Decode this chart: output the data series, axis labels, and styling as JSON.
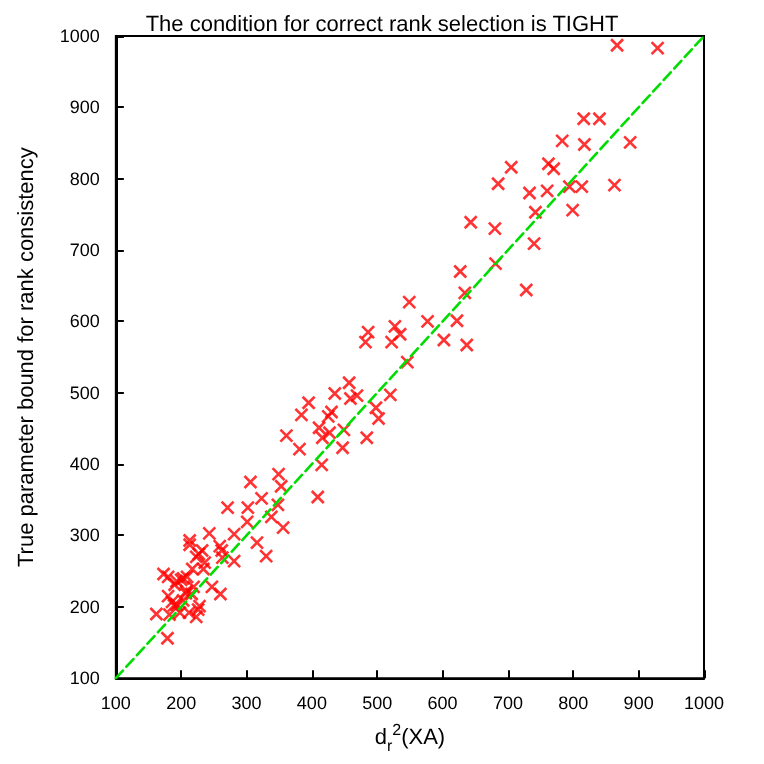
{
  "chart_data": {
    "type": "scatter",
    "title": "The condition for correct rank selection is TIGHT",
    "xlabel": "d$_{r}$$^{2}$(XA)",
    "ylabel": "True parameter bound for rank consistency",
    "xlim": [
      100,
      1000
    ],
    "ylim": [
      100,
      1000
    ],
    "xticks": [
      100,
      200,
      300,
      400,
      500,
      600,
      700,
      800,
      900,
      1000
    ],
    "yticks": [
      100,
      200,
      300,
      400,
      500,
      600,
      700,
      800,
      900,
      1000
    ],
    "grid": false,
    "marker": "cross",
    "series": [
      {
        "type": "scatter",
        "color": "#ff0000",
        "x": [
          867,
          929,
          816,
          840,
          887,
          783,
          817,
          705,
          762,
          770,
          685,
          733,
          760,
          794,
          813,
          863,
          742,
          799,
          643,
          680,
          740,
          681,
          627,
          634,
          728,
          549,
          577,
          622,
          486,
          527,
          535,
          482,
          522,
          602,
          637,
          546,
          520,
          457,
          435,
          459,
          469,
          498,
          502,
          395,
          384,
          430,
          425,
          361,
          411,
          416,
          427,
          449,
          484,
          447,
          381,
          415,
          306,
          349,
          353,
          409,
          323,
          271,
          302,
          348,
          338,
          301,
          356,
          243,
          281,
          213,
          213,
          316,
          232,
          227,
          259,
          262,
          263,
          223,
          236,
          281,
          217,
          234,
          330,
          173,
          180,
          193,
          203,
          209,
          200,
          190,
          219,
          247,
          260,
          180,
          186,
          189,
          203,
          207,
          208,
          216,
          226,
          198,
          212,
          223,
          182,
          162,
          179,
          228,
          193
        ],
        "values": [
          987,
          983,
          884,
          884,
          851,
          853,
          848,
          816,
          821,
          814,
          793,
          780,
          783,
          789,
          789,
          791,
          753,
          756,
          739,
          730,
          709,
          681,
          670,
          640,
          644,
          627,
          600,
          601,
          585,
          593,
          582,
          571,
          571,
          574,
          567,
          543,
          497,
          514,
          499,
          492,
          496,
          479,
          464,
          486,
          469,
          473,
          467,
          440,
          451,
          437,
          444,
          448,
          437,
          423,
          421,
          399,
          375,
          386,
          369,
          354,
          352,
          339,
          339,
          343,
          326,
          319,
          311,
          303,
          302,
          293,
          287,
          290,
          279,
          274,
          285,
          279,
          269,
          270,
          262,
          264,
          253,
          253,
          271,
          246,
          242,
          236,
          240,
          242,
          238,
          231,
          228,
          228,
          218,
          215,
          207,
          202,
          209,
          219,
          222,
          218,
          196,
          192,
          192,
          186,
          189,
          190,
          156,
          201,
          203
        ]
      },
      {
        "type": "line",
        "color": "#00dd00",
        "line_style": "dashed",
        "marker": "none",
        "x": [
          100,
          1000
        ],
        "values": [
          100,
          1000
        ]
      }
    ]
  }
}
